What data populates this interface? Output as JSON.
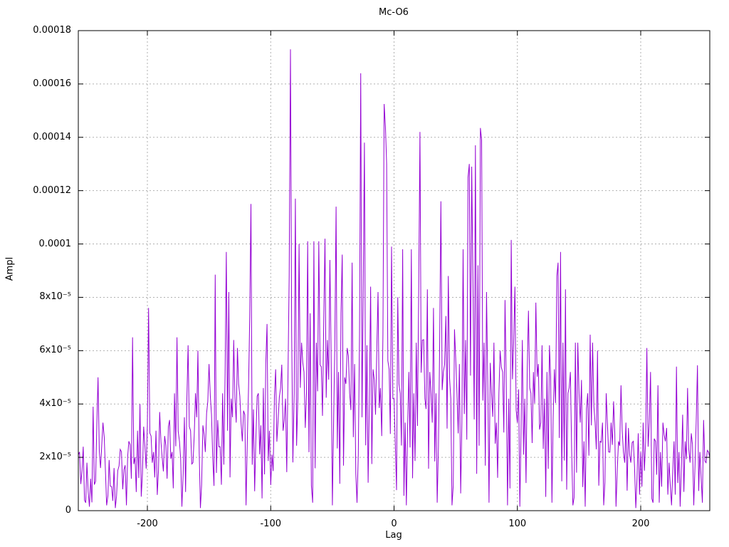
{
  "window": {
    "background": "#ffffff"
  },
  "chart_data": {
    "type": "line",
    "title": "Mc-O6",
    "xlabel": "Lag",
    "ylabel": "Ampl",
    "xlim": [
      -256,
      256
    ],
    "ylim": [
      0,
      0.00018
    ],
    "grid": true,
    "legend": "none",
    "line_color": "#9400d3",
    "grid_color": "#b0b0b0",
    "axis_color": "#000000",
    "x_ticks": [
      {
        "value": -200,
        "label": "-200"
      },
      {
        "value": -100,
        "label": "-100"
      },
      {
        "value": 0,
        "label": "0"
      },
      {
        "value": 100,
        "label": "100"
      },
      {
        "value": 200,
        "label": "200"
      }
    ],
    "y_ticks": [
      {
        "value_e5": 0,
        "label": "0"
      },
      {
        "value_e5": 2,
        "label": "2x10⁻⁵"
      },
      {
        "value_e5": 4,
        "label": "4x10⁻⁵"
      },
      {
        "value_e5": 6,
        "label": "6x10⁻⁵"
      },
      {
        "value_e5": 8,
        "label": "8x10⁻⁵"
      },
      {
        "value_e5": 10,
        "label": "0.0001"
      },
      {
        "value_e5": 12,
        "label": "0.00012"
      },
      {
        "value_e5": 14,
        "label": "0.00014"
      },
      {
        "value_e5": 16,
        "label": "0.00016"
      },
      {
        "value_e5": 18,
        "label": "0.00018"
      }
    ],
    "unit_scale": 1e-05,
    "lag_start": -256,
    "lag_end": 256,
    "points_e5": [
      [
        -256,
        2.1
      ],
      [
        -255,
        2.2
      ],
      [
        -254,
        1.0
      ],
      [
        -253,
        1.5
      ],
      [
        -252,
        2.4
      ],
      [
        -250,
        0.3
      ],
      [
        -249,
        1.8
      ],
      [
        -247,
        0.15
      ],
      [
        -246,
        1.2
      ],
      [
        -244,
        3.9
      ],
      [
        -242,
        1.1
      ],
      [
        -240,
        5.0
      ],
      [
        -238,
        1.6
      ],
      [
        -236,
        3.3
      ],
      [
        -233,
        0.2
      ],
      [
        -231,
        1.9
      ],
      [
        -229,
        0.9
      ],
      [
        -227,
        1.6
      ],
      [
        -226,
        0.1
      ],
      [
        -224,
        1.5
      ],
      [
        -222,
        2.3
      ],
      [
        -220,
        0.8
      ],
      [
        -218,
        1.7
      ],
      [
        -217,
        0.2
      ],
      [
        -215,
        2.6
      ],
      [
        -213,
        1.2
      ],
      [
        -212,
        6.5
      ],
      [
        -210,
        2.0
      ],
      [
        -208,
        3.0
      ],
      [
        -206,
        4.0
      ],
      [
        -204,
        1.4
      ],
      [
        -202,
        2.4
      ],
      [
        -200,
        3.2
      ],
      [
        -199,
        7.6
      ],
      [
        -197,
        2.8
      ],
      [
        -195,
        2.2
      ],
      [
        -193,
        3.0
      ],
      [
        -191,
        1.5
      ],
      [
        -190,
        3.7
      ],
      [
        -188,
        2.0
      ],
      [
        -186,
        2.8
      ],
      [
        -184,
        1.2
      ],
      [
        -182,
        3.4
      ],
      [
        -180,
        2.2
      ],
      [
        -178,
        4.4
      ],
      [
        -176,
        6.5
      ],
      [
        -174,
        2.6
      ],
      [
        -172,
        0.15
      ],
      [
        -170,
        3.5
      ],
      [
        -168,
        4.2
      ],
      [
        -167,
        6.2
      ],
      [
        -165,
        3.0
      ],
      [
        -163,
        1.8
      ],
      [
        -161,
        4.4
      ],
      [
        -159,
        6.0
      ],
      [
        -157,
        0.1
      ],
      [
        -155,
        3.2
      ],
      [
        -153,
        2.2
      ],
      [
        -151,
        4.1
      ],
      [
        -150,
        5.5
      ],
      [
        -148,
        3.6
      ],
      [
        -147,
        2.0
      ],
      [
        -145,
        8.85
      ],
      [
        -143,
        3.4
      ],
      [
        -141,
        2.4
      ],
      [
        -139,
        4.4
      ],
      [
        -137,
        5.2
      ],
      [
        -136,
        9.7
      ],
      [
        -134,
        8.2
      ],
      [
        -132,
        4.2
      ],
      [
        -130,
        6.4
      ],
      [
        -128,
        3.3
      ],
      [
        -127,
        6.1
      ],
      [
        -125,
        4.3
      ],
      [
        -123,
        2.6
      ],
      [
        -121,
        3.6
      ],
      [
        -120,
        0.2
      ],
      [
        -118,
        4.6
      ],
      [
        -117,
        7.3
      ],
      [
        -116,
        11.5
      ],
      [
        -114,
        3.8
      ],
      [
        -112,
        2.8
      ],
      [
        -110,
        4.4
      ],
      [
        -108,
        3.2
      ],
      [
        -106,
        4.6
      ],
      [
        -104,
        5.5
      ],
      [
        -103,
        7.0
      ],
      [
        -101,
        3.0
      ],
      [
        -99,
        2.1
      ],
      [
        -97,
        4.3
      ],
      [
        -96,
        5.3
      ],
      [
        -94,
        3.4
      ],
      [
        -92,
        4.6
      ],
      [
        -90,
        3.0
      ],
      [
        -88,
        4.2
      ],
      [
        -86,
        5.0
      ],
      [
        -85,
        8.8
      ],
      [
        -84,
        17.3
      ],
      [
        -83,
        6.7
      ],
      [
        -81,
        4.4
      ],
      [
        -80,
        11.7
      ],
      [
        -78,
        4.2
      ],
      [
        -77,
        10.0
      ],
      [
        -75,
        6.3
      ],
      [
        -73,
        5.2
      ],
      [
        -71,
        4.4
      ],
      [
        -70,
        10.1
      ],
      [
        -68,
        7.4
      ],
      [
        -66,
        0.3
      ],
      [
        -65,
        10.1
      ],
      [
        -63,
        6.3
      ],
      [
        -61,
        10.1
      ],
      [
        -59,
        5.4
      ],
      [
        -57,
        7.2
      ],
      [
        -56,
        10.2
      ],
      [
        -54,
        6.4
      ],
      [
        -52,
        9.4
      ],
      [
        -50,
        0.2
      ],
      [
        -48,
        6.2
      ],
      [
        -47,
        11.4
      ],
      [
        -45,
        5.2
      ],
      [
        -43,
        7.4
      ],
      [
        -42,
        9.6
      ],
      [
        -40,
        5.0
      ],
      [
        -38,
        6.1
      ],
      [
        -36,
        4.4
      ],
      [
        -34,
        9.3
      ],
      [
        -32,
        5.5
      ],
      [
        -30,
        0.3
      ],
      [
        -28,
        6.6
      ],
      [
        -27,
        16.4
      ],
      [
        -25,
        8.3
      ],
      [
        -24,
        13.8
      ],
      [
        -22,
        6.2
      ],
      [
        -20,
        4.2
      ],
      [
        -19,
        8.4
      ],
      [
        -17,
        5.3
      ],
      [
        -15,
        3.6
      ],
      [
        -13,
        8.2
      ],
      [
        -11,
        4.6
      ],
      [
        -9,
        6.6
      ],
      [
        -8,
        15.25
      ],
      [
        -7,
        14.4
      ],
      [
        -6,
        13.0
      ],
      [
        -4,
        5.3
      ],
      [
        -2,
        9.9
      ],
      [
        0,
        4.2
      ],
      [
        1,
        2.6
      ],
      [
        3,
        8.0
      ],
      [
        5,
        4.4
      ],
      [
        7,
        9.8
      ],
      [
        9,
        3.3
      ],
      [
        10,
        0.2
      ],
      [
        12,
        5.2
      ],
      [
        14,
        9.8
      ],
      [
        16,
        4.4
      ],
      [
        18,
        6.3
      ],
      [
        20,
        8.2
      ],
      [
        21,
        14.2
      ],
      [
        23,
        6.4
      ],
      [
        25,
        4.2
      ],
      [
        27,
        8.3
      ],
      [
        29,
        5.2
      ],
      [
        31,
        3.3
      ],
      [
        32,
        7.6
      ],
      [
        34,
        4.4
      ],
      [
        35,
        0.3
      ],
      [
        37,
        6.3
      ],
      [
        38,
        11.6
      ],
      [
        40,
        5.2
      ],
      [
        42,
        7.3
      ],
      [
        44,
        8.8
      ],
      [
        46,
        4.2
      ],
      [
        47,
        0.2
      ],
      [
        49,
        6.8
      ],
      [
        51,
        4.4
      ],
      [
        53,
        5.5
      ],
      [
        55,
        3.3
      ],
      [
        56,
        9.8
      ],
      [
        58,
        6.4
      ],
      [
        60,
        12.5
      ],
      [
        61,
        13.0
      ],
      [
        63,
        12.9
      ],
      [
        64,
        8.3
      ],
      [
        66,
        13.7
      ],
      [
        68,
        9.2
      ],
      [
        70,
        14.35
      ],
      [
        71,
        13.9
      ],
      [
        73,
        6.3
      ],
      [
        75,
        8.2
      ],
      [
        77,
        0.3
      ],
      [
        79,
        4.4
      ],
      [
        81,
        6.3
      ],
      [
        83,
        3.3
      ],
      [
        85,
        4.4
      ],
      [
        86,
        6.0
      ],
      [
        88,
        5.2
      ],
      [
        90,
        7.9
      ],
      [
        92,
        0.2
      ],
      [
        93,
        4.2
      ],
      [
        95,
        10.15
      ],
      [
        97,
        6.3
      ],
      [
        98,
        8.4
      ],
      [
        100,
        3.3
      ],
      [
        102,
        0.15
      ],
      [
        104,
        6.4
      ],
      [
        106,
        4.2
      ],
      [
        108,
        5.3
      ],
      [
        109,
        7.5
      ],
      [
        111,
        4.4
      ],
      [
        113,
        5.2
      ],
      [
        115,
        7.8
      ],
      [
        117,
        5.5
      ],
      [
        119,
        3.3
      ],
      [
        120,
        6.2
      ],
      [
        122,
        4.2
      ],
      [
        124,
        5.2
      ],
      [
        126,
        6.2
      ],
      [
        128,
        0.3
      ],
      [
        130,
        5.3
      ],
      [
        132,
        8.8
      ],
      [
        133,
        9.3
      ],
      [
        135,
        9.7
      ],
      [
        137,
        6.3
      ],
      [
        139,
        8.3
      ],
      [
        141,
        4.4
      ],
      [
        143,
        5.2
      ],
      [
        145,
        0.2
      ],
      [
        147,
        6.3
      ],
      [
        149,
        6.3
      ],
      [
        151,
        3.3
      ],
      [
        152,
        4.9
      ],
      [
        154,
        2.6
      ],
      [
        155,
        0.15
      ],
      [
        157,
        4.4
      ],
      [
        159,
        6.6
      ],
      [
        161,
        6.3
      ],
      [
        163,
        3.3
      ],
      [
        165,
        6.0
      ],
      [
        167,
        2.6
      ],
      [
        169,
        3.3
      ],
      [
        170,
        0.2
      ],
      [
        172,
        4.4
      ],
      [
        174,
        2.2
      ],
      [
        176,
        3.3
      ],
      [
        178,
        4.1
      ],
      [
        180,
        0.15
      ],
      [
        182,
        2.6
      ],
      [
        184,
        4.7
      ],
      [
        186,
        2.2
      ],
      [
        188,
        3.3
      ],
      [
        190,
        3.1
      ],
      [
        192,
        1.8
      ],
      [
        194,
        2.6
      ],
      [
        196,
        0.1
      ],
      [
        198,
        2.9
      ],
      [
        200,
        2.2
      ],
      [
        202,
        3.3
      ],
      [
        204,
        2.6
      ],
      [
        205,
        6.1
      ],
      [
        207,
        3.3
      ],
      [
        208,
        5.2
      ],
      [
        210,
        0.3
      ],
      [
        212,
        2.6
      ],
      [
        214,
        4.7
      ],
      [
        216,
        2.2
      ],
      [
        218,
        3.3
      ],
      [
        220,
        2.6
      ],
      [
        221,
        3.1
      ],
      [
        223,
        1.8
      ],
      [
        225,
        0.2
      ],
      [
        227,
        2.6
      ],
      [
        229,
        5.4
      ],
      [
        231,
        2.2
      ],
      [
        232,
        0.15
      ],
      [
        234,
        3.6
      ],
      [
        236,
        2.6
      ],
      [
        238,
        4.6
      ],
      [
        240,
        1.8
      ],
      [
        241,
        2.9
      ],
      [
        243,
        0.2
      ],
      [
        245,
        3.3
      ],
      [
        246,
        5.45
      ],
      [
        248,
        2.2
      ],
      [
        250,
        0.3
      ],
      [
        251,
        3.4
      ],
      [
        253,
        1.8
      ],
      [
        255,
        2.2
      ],
      [
        256,
        2.0
      ]
    ],
    "fill_envelope_e5": [
      [
        -256,
        2.2
      ],
      [
        -240,
        3.5
      ],
      [
        -225,
        2.2
      ],
      [
        -212,
        3.5
      ],
      [
        -199,
        3.5
      ],
      [
        -190,
        2.8
      ],
      [
        -176,
        3.5
      ],
      [
        -160,
        3.5
      ],
      [
        -150,
        4.5
      ],
      [
        -136,
        5.0
      ],
      [
        -117,
        5.0
      ],
      [
        -104,
        4.5
      ],
      [
        -84,
        6.0
      ],
      [
        -56,
        6.5
      ],
      [
        -27,
        7.0
      ],
      [
        -8,
        7.0
      ],
      [
        0,
        5.0
      ],
      [
        21,
        6.5
      ],
      [
        38,
        6.0
      ],
      [
        70,
        7.0
      ],
      [
        95,
        5.5
      ],
      [
        115,
        5.0
      ],
      [
        136,
        5.5
      ],
      [
        160,
        4.0
      ],
      [
        184,
        3.0
      ],
      [
        205,
        3.0
      ],
      [
        229,
        3.0
      ],
      [
        256,
        2.2
      ]
    ],
    "fill_noise_pattern": [
      0.5,
      0.2,
      0.8,
      0.35,
      1.0,
      0.15,
      0.6,
      0.9,
      0.25,
      0.45,
      0.7,
      0.1,
      0.85,
      0.3,
      0.55,
      0.95,
      0.4,
      0.65,
      0.2,
      0.75,
      0.3,
      0.9,
      0.5
    ]
  }
}
